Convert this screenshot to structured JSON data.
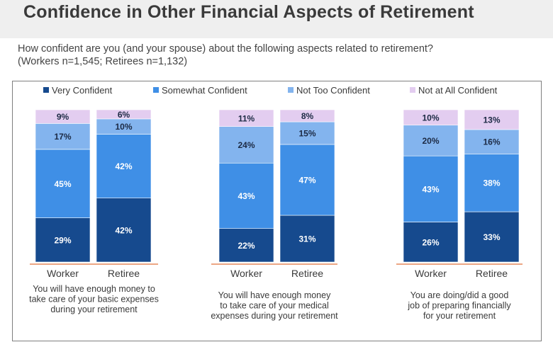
{
  "title": "Confidence in Other Financial Aspects of Retirement",
  "question_line1": "How confident are you (and your spouse) about the following aspects related to retirement?",
  "question_line2": "(Workers n=1,545; Retirees n=1,132)",
  "colors": {
    "very": "#164a8e",
    "somewhat": "#3f8fe6",
    "not_too": "#83b4ee",
    "not_at_all": "#e3cdf0"
  },
  "chart_data": {
    "type": "bar",
    "stacked": true,
    "percent": true,
    "legend": [
      "Very Confident",
      "Somewhat Confident",
      "Not Too Confident",
      "Not at All Confident"
    ],
    "legend_position": "top",
    "groups": [
      {
        "caption": [
          "You will have enough money to",
          "take care of your basic expenses",
          "during your retirement"
        ],
        "bars": [
          {
            "category": "Worker",
            "values": [
              29,
              45,
              17,
              9
            ]
          },
          {
            "category": "Retiree",
            "values": [
              42,
              42,
              10,
              6
            ]
          }
        ]
      },
      {
        "caption": [
          "You will have enough money",
          "to take care of your medical",
          "expenses during your retirement"
        ],
        "bars": [
          {
            "category": "Worker",
            "values": [
              22,
              43,
              24,
              11
            ]
          },
          {
            "category": "Retiree",
            "values": [
              31,
              47,
              15,
              8
            ]
          }
        ]
      },
      {
        "caption": [
          "You are doing/did a good",
          "job of preparing financially",
          "for your retirement"
        ],
        "bars": [
          {
            "category": "Worker",
            "values": [
              26,
              43,
              20,
              10
            ]
          },
          {
            "category": "Retiree",
            "values": [
              33,
              38,
              16,
              13
            ]
          }
        ]
      }
    ]
  }
}
